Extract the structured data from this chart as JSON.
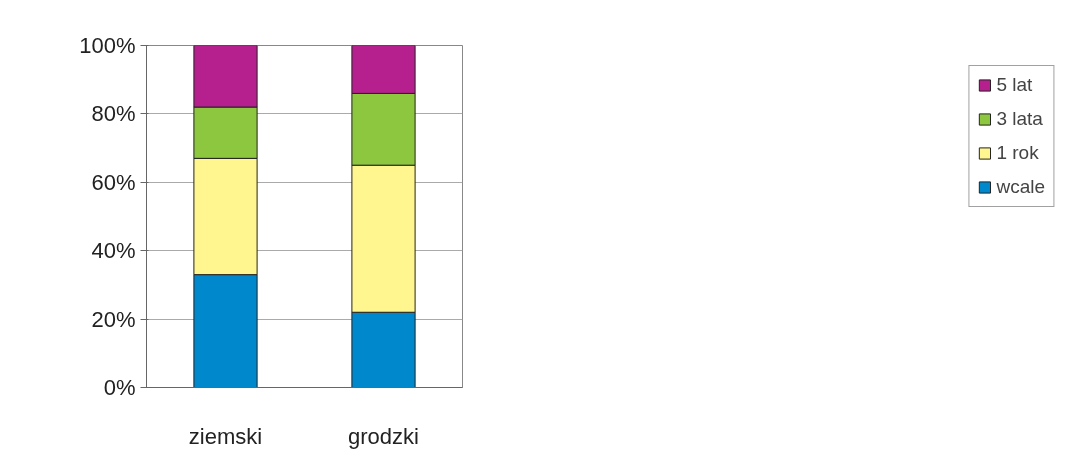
{
  "chart_data": {
    "type": "bar",
    "stacked": true,
    "categories": [
      "ziemski",
      "grodzki"
    ],
    "series": [
      {
        "name": "wcale",
        "color": "#0088cc",
        "values": [
          33,
          22
        ]
      },
      {
        "name": "1 rok",
        "color": "#fff68f",
        "values": [
          34,
          43
        ]
      },
      {
        "name": "3 lata",
        "color": "#8dc63f",
        "values": [
          15,
          21
        ]
      },
      {
        "name": "5 lat",
        "color": "#b5208e",
        "values": [
          18,
          14
        ]
      }
    ],
    "ylim": [
      0,
      100
    ],
    "yticks": [
      {
        "value": 0,
        "label": "0%"
      },
      {
        "value": 20,
        "label": "20%"
      },
      {
        "value": 40,
        "label": "40%"
      },
      {
        "value": 60,
        "label": "60%"
      },
      {
        "value": 80,
        "label": "80%"
      },
      {
        "value": 100,
        "label": "100%"
      }
    ],
    "grid": "y",
    "legend": "right"
  }
}
